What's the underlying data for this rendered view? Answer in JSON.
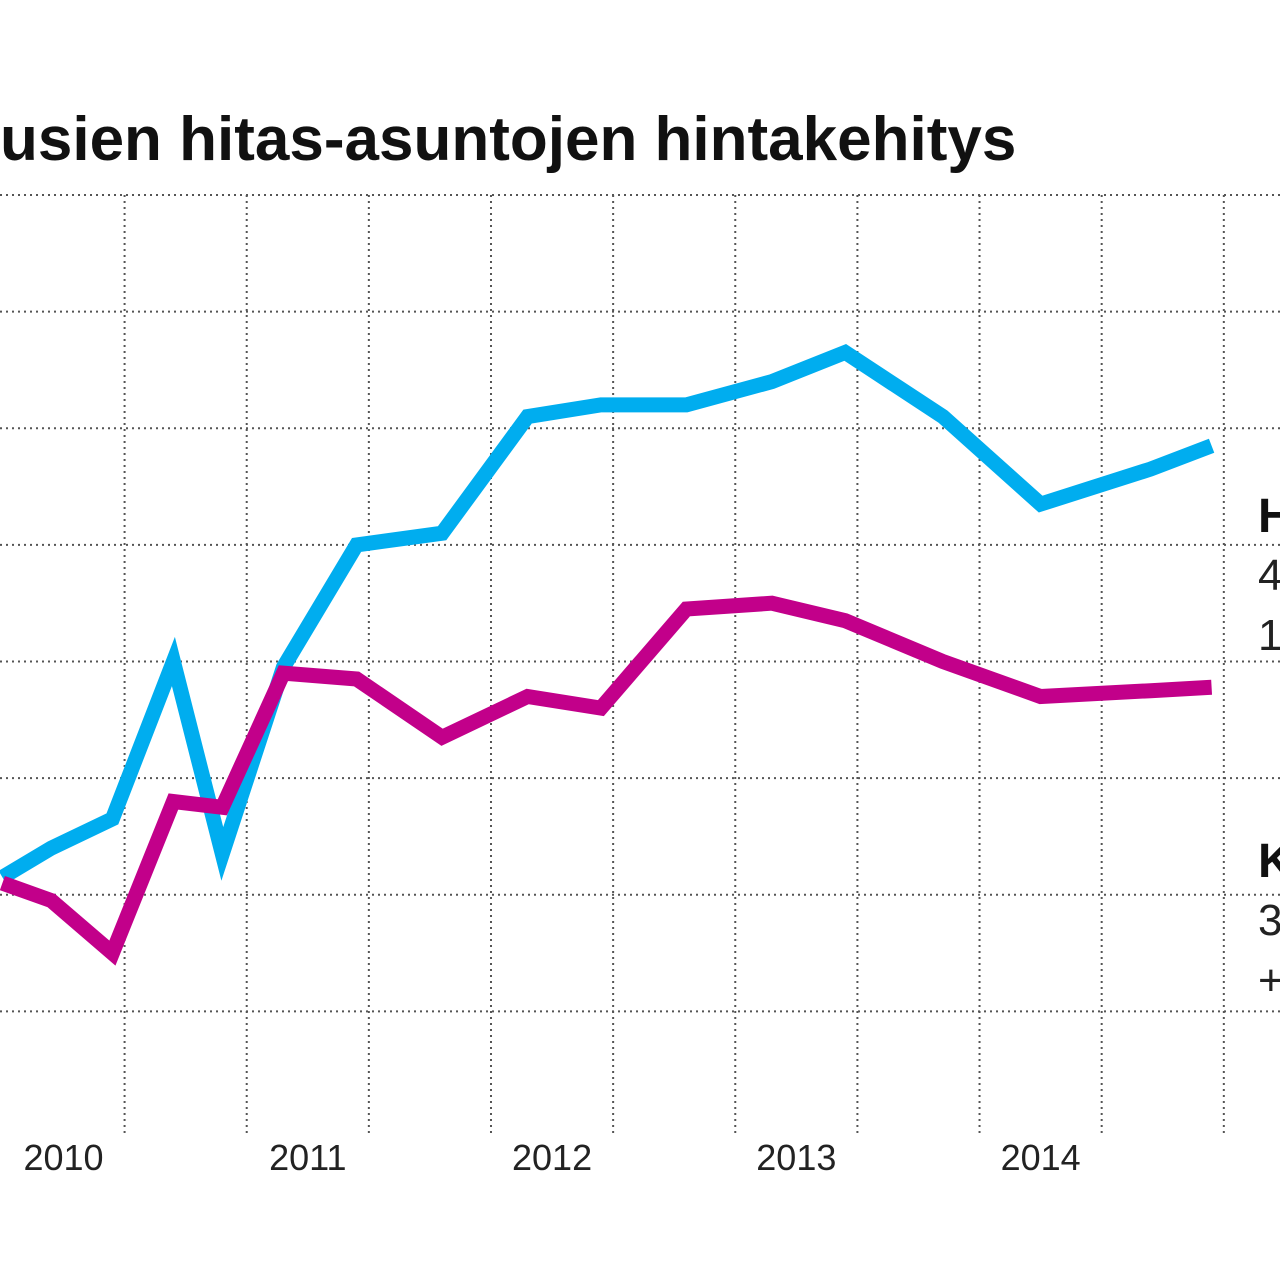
{
  "chart_data": {
    "type": "line",
    "title": "usien hitas-asuntojen hintakehitys",
    "xlabel": "",
    "ylabel": "",
    "x": [
      2009.75,
      2009.95,
      2010.2,
      2010.45,
      2010.65,
      2010.9,
      2011.2,
      2011.55,
      2011.9,
      2012.2,
      2012.55,
      2012.9,
      2013.2,
      2013.6,
      2014.0,
      2014.45,
      2014.7
    ],
    "x_ticks": [
      "2010",
      "2011",
      "2012",
      "2013",
      "2014"
    ],
    "x_tick_values": [
      2010.0,
      2011.0,
      2012.0,
      2013.0,
      2014.0
    ],
    "xlim": [
      2009.74,
      2014.98
    ],
    "ylim": [
      0,
      8
    ],
    "series": [
      {
        "color": "#00ADEF",
        "values": [
          2.15,
          2.4,
          2.65,
          4.0,
          2.35,
          3.95,
          5.0,
          5.1,
          6.1,
          6.2,
          6.2,
          6.4,
          6.65,
          6.1,
          5.35,
          5.65,
          5.85
        ]
      },
      {
        "color": "#C2008A",
        "values": [
          2.1,
          1.95,
          1.5,
          2.8,
          2.75,
          3.9,
          3.85,
          3.35,
          3.7,
          3.6,
          4.45,
          4.5,
          4.35,
          4.0,
          3.7,
          3.75,
          3.78
        ]
      }
    ],
    "grid": true,
    "legend": "right"
  },
  "right_labels": [
    {
      "bold": "H",
      "line1": "4",
      "line2": "1"
    },
    {
      "bold": "K",
      "line1": "3",
      "line2": "+"
    }
  ]
}
